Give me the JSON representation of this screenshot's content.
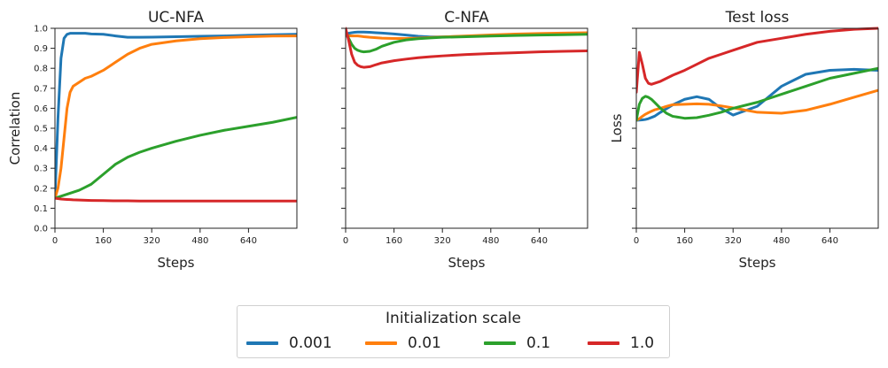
{
  "chart_data": [
    {
      "type": "line",
      "title": "UC-NFA",
      "xlabel": "Steps",
      "ylabel": "Correlation",
      "xlim": [
        0,
        800
      ],
      "ylim": [
        0,
        1
      ],
      "xticks": [
        "0",
        "160",
        "320",
        "480",
        "640"
      ],
      "yticks": [
        "0.0",
        "0.1",
        "0.2",
        "0.3",
        "0.4",
        "0.5",
        "0.6",
        "0.7",
        "0.8",
        "0.9",
        "1.0"
      ],
      "x": [
        0,
        10,
        20,
        30,
        40,
        50,
        60,
        80,
        100,
        120,
        160,
        200,
        240,
        280,
        320,
        400,
        480,
        560,
        640,
        720,
        800
      ],
      "series": [
        {
          "name": "0.001",
          "values": [
            0.15,
            0.55,
            0.85,
            0.95,
            0.97,
            0.975,
            0.975,
            0.975,
            0.975,
            0.972,
            0.97,
            0.962,
            0.955,
            0.955,
            0.956,
            0.958,
            0.96,
            0.962,
            0.965,
            0.968,
            0.97
          ]
        },
        {
          "name": "0.01",
          "values": [
            0.15,
            0.2,
            0.3,
            0.45,
            0.6,
            0.68,
            0.71,
            0.73,
            0.75,
            0.76,
            0.79,
            0.83,
            0.87,
            0.9,
            0.92,
            0.937,
            0.948,
            0.954,
            0.958,
            0.961,
            0.962
          ]
        },
        {
          "name": "0.1",
          "values": [
            0.15,
            0.155,
            0.16,
            0.165,
            0.17,
            0.175,
            0.18,
            0.19,
            0.205,
            0.22,
            0.27,
            0.32,
            0.355,
            0.38,
            0.4,
            0.435,
            0.465,
            0.49,
            0.51,
            0.53,
            0.555
          ]
        },
        {
          "name": "1.0",
          "values": [
            0.15,
            0.148,
            0.146,
            0.145,
            0.144,
            0.143,
            0.142,
            0.141,
            0.14,
            0.139,
            0.138,
            0.137,
            0.137,
            0.136,
            0.136,
            0.136,
            0.136,
            0.136,
            0.136,
            0.136,
            0.136
          ]
        }
      ]
    },
    {
      "type": "line",
      "title": "C-NFA",
      "xlabel": "Steps",
      "ylabel": "",
      "xlim": [
        0,
        800
      ],
      "ylim": [
        0,
        1
      ],
      "xticks": [
        "0",
        "160",
        "320",
        "480",
        "640"
      ],
      "yticks": [],
      "x": [
        0,
        10,
        20,
        30,
        40,
        50,
        60,
        80,
        100,
        120,
        160,
        200,
        240,
        280,
        320,
        400,
        480,
        560,
        640,
        720,
        800
      ],
      "series": [
        {
          "name": "0.001",
          "values": [
            0.96,
            0.975,
            0.978,
            0.98,
            0.981,
            0.981,
            0.981,
            0.98,
            0.978,
            0.976,
            0.972,
            0.966,
            0.96,
            0.957,
            0.957,
            0.96,
            0.963,
            0.966,
            0.968,
            0.97,
            0.972
          ]
        },
        {
          "name": "0.01",
          "values": [
            0.965,
            0.963,
            0.962,
            0.962,
            0.962,
            0.96,
            0.958,
            0.955,
            0.953,
            0.951,
            0.949,
            0.949,
            0.951,
            0.954,
            0.957,
            0.962,
            0.967,
            0.971,
            0.974,
            0.976,
            0.978
          ]
        },
        {
          "name": "0.1",
          "values": [
            0.985,
            0.95,
            0.92,
            0.9,
            0.89,
            0.885,
            0.882,
            0.885,
            0.895,
            0.91,
            0.93,
            0.942,
            0.948,
            0.952,
            0.955,
            0.958,
            0.961,
            0.964,
            0.966,
            0.968,
            0.97
          ]
        },
        {
          "name": "1.0",
          "values": [
            1.0,
            0.94,
            0.87,
            0.83,
            0.815,
            0.808,
            0.805,
            0.808,
            0.818,
            0.827,
            0.838,
            0.846,
            0.853,
            0.858,
            0.862,
            0.869,
            0.874,
            0.878,
            0.882,
            0.885,
            0.887
          ]
        }
      ]
    },
    {
      "type": "line",
      "title": "Test loss",
      "xlabel": "Steps",
      "ylabel": "Loss",
      "xlim": [
        0,
        800
      ],
      "ylim": [
        0,
        1
      ],
      "xticks": [
        "0",
        "160",
        "320",
        "480",
        "640"
      ],
      "yticks": [],
      "x": [
        0,
        10,
        20,
        30,
        40,
        50,
        60,
        80,
        100,
        120,
        160,
        200,
        240,
        280,
        320,
        400,
        480,
        560,
        640,
        720,
        800
      ],
      "series": [
        {
          "name": "0.001",
          "values": [
            0.54,
            0.541,
            0.542,
            0.544,
            0.548,
            0.554,
            0.56,
            0.58,
            0.598,
            0.617,
            0.645,
            0.658,
            0.645,
            0.6,
            0.566,
            0.61,
            0.71,
            0.77,
            0.79,
            0.795,
            0.79
          ]
        },
        {
          "name": "0.01",
          "values": [
            0.54,
            0.548,
            0.56,
            0.57,
            0.578,
            0.585,
            0.592,
            0.6,
            0.61,
            0.618,
            0.62,
            0.622,
            0.62,
            0.612,
            0.602,
            0.58,
            0.575,
            0.59,
            0.62,
            0.655,
            0.69
          ]
        },
        {
          "name": "0.1",
          "values": [
            0.54,
            0.62,
            0.65,
            0.66,
            0.655,
            0.645,
            0.63,
            0.6,
            0.575,
            0.56,
            0.55,
            0.553,
            0.565,
            0.58,
            0.6,
            0.63,
            0.67,
            0.71,
            0.75,
            0.775,
            0.8
          ]
        },
        {
          "name": "1.0",
          "values": [
            0.68,
            0.88,
            0.82,
            0.75,
            0.725,
            0.72,
            0.725,
            0.735,
            0.75,
            0.765,
            0.79,
            0.82,
            0.85,
            0.87,
            0.89,
            0.93,
            0.95,
            0.97,
            0.985,
            0.995,
            1.0
          ]
        }
      ]
    }
  ],
  "legend": {
    "title": "Initialization scale",
    "items": [
      {
        "label": "0.001",
        "color": "#1f77b4"
      },
      {
        "label": "0.01",
        "color": "#ff7f0e"
      },
      {
        "label": "0.1",
        "color": "#2ca02c"
      },
      {
        "label": "1.0",
        "color": "#d62728"
      }
    ]
  },
  "colors": {
    "0.001": "#1f77b4",
    "0.01": "#ff7f0e",
    "0.1": "#2ca02c",
    "1.0": "#d62728"
  }
}
